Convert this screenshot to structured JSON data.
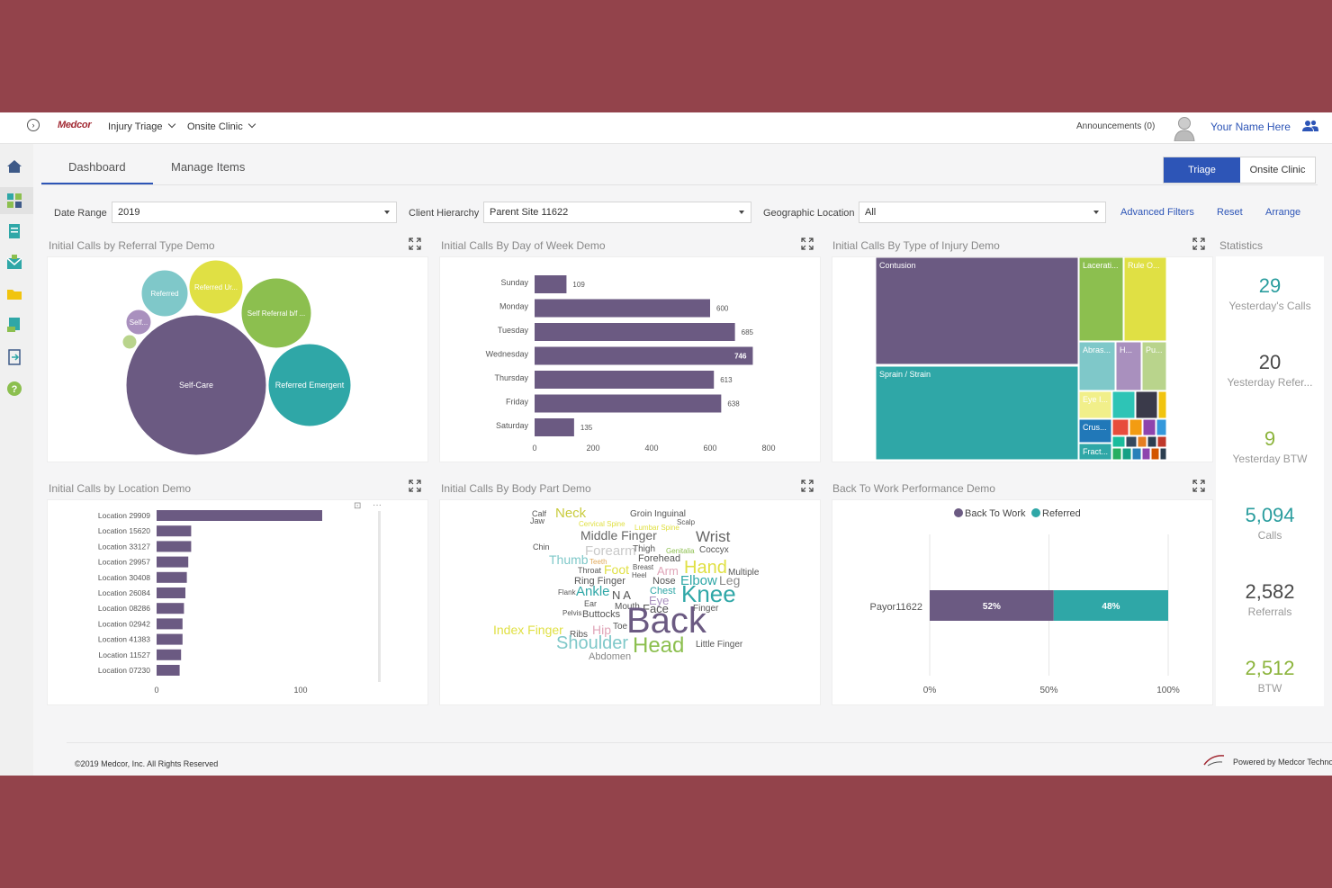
{
  "header": {
    "expand_icon": "chevron-right-icon",
    "logo": "Medcor",
    "nav": [
      "Injury Triage",
      "Onsite Clinic"
    ],
    "announcements": "Announcements (0)",
    "user_name": "Your Name Here",
    "user_icon": "users-icon"
  },
  "sidebar": {
    "icons": [
      "home-icon",
      "dashboard-icon",
      "document-icon",
      "mail-icon",
      "folder-icon",
      "report-icon",
      "export-icon",
      "help-icon"
    ]
  },
  "tabs": [
    "Dashboard",
    "Manage Items"
  ],
  "mode_buttons": [
    "Triage",
    "Onsite Clinic"
  ],
  "filters": {
    "date_range_label": "Date Range",
    "date_range_value": "2019",
    "client_hierarchy_label": "Client Hierarchy",
    "client_hierarchy_value": "Parent Site 11622",
    "geo_label": "Geographic Location",
    "geo_value": "All",
    "advanced": "Advanced Filters",
    "reset": "Reset",
    "arrange": "Arrange"
  },
  "panels": {
    "referral": "Initial Calls by Referral Type Demo",
    "day_of_week": "Initial Calls By Day of Week Demo",
    "injury_type": "Initial Calls By Type of Injury Demo",
    "statistics": "Statistics",
    "location": "Initial Calls by Location Demo",
    "body_part": "Initial Calls By Body Part Demo",
    "btw": "Back To Work Performance Demo"
  },
  "statistics": [
    {
      "value": "29",
      "label": "Yesterday's Calls",
      "color": "#2a9d9e"
    },
    {
      "value": "20",
      "label": "Yesterday Refer...",
      "color": "#4a4a4a"
    },
    {
      "value": "9",
      "label": "Yesterday BTW",
      "color": "#8cb43c"
    },
    {
      "value": "5,094",
      "label": "Calls",
      "color": "#2a9d9e"
    },
    {
      "value": "2,582",
      "label": "Referrals",
      "color": "#4a4a4a"
    },
    {
      "value": "2,512",
      "label": "BTW",
      "color": "#8cb43c"
    }
  ],
  "chart_data": [
    {
      "type": "bubble",
      "title": "Initial Calls by Referral Type Demo",
      "bubbles": [
        {
          "label": "Self-Care",
          "color": "#6b5a82"
        },
        {
          "label": "Referred Emergent",
          "color": "#2fa7a7"
        },
        {
          "label": "Self Referral b/f ...",
          "color": "#8cbf4f"
        },
        {
          "label": "Referred Ur...",
          "color": "#e0e044"
        },
        {
          "label": "Referred",
          "color": "#7fc8c9"
        },
        {
          "label": "Self...",
          "color": "#a990be"
        },
        {
          "label": "",
          "color": "#b9d48c"
        }
      ]
    },
    {
      "type": "bar",
      "title": "Initial Calls By Day of Week Demo",
      "categories": [
        "Sunday",
        "Monday",
        "Tuesday",
        "Wednesday",
        "Thursday",
        "Friday",
        "Saturday"
      ],
      "values": [
        109,
        600,
        685,
        746,
        613,
        638,
        135
      ],
      "xticks": [
        0,
        200,
        400,
        600,
        800
      ],
      "xlim": [
        0,
        800
      ],
      "color": "#6b5a82"
    },
    {
      "type": "treemap",
      "title": "Initial Calls By Type of Injury Demo",
      "labels": [
        "Contusion",
        "Sprain / Strain",
        "Lacerati...",
        "Rule O...",
        "Abras...",
        "H...",
        "Pu...",
        "Eye I...",
        "Crus...",
        "Fract..."
      ]
    },
    {
      "type": "bar",
      "title": "Initial Calls by Location Demo",
      "categories": [
        "Location 29909",
        "Location 15620",
        "Location 33127",
        "Location 29957",
        "Location 30408",
        "Location 26084",
        "Location 08286",
        "Location 02942",
        "Location 41383",
        "Location 11527",
        "Location 07230"
      ],
      "values": [
        115,
        24,
        24,
        22,
        21,
        20,
        19,
        18,
        18,
        17,
        16
      ],
      "xticks": [
        0,
        100
      ],
      "xlim": [
        0,
        150
      ],
      "color": "#6b5a82"
    },
    {
      "type": "wordcloud",
      "title": "Initial Calls By Body Part Demo",
      "words": [
        "Calf",
        "Jaw",
        "Neck",
        "Groin",
        "Inguinal",
        "Cervical Spine",
        "Lumbar Spine",
        "Scalp",
        "Middle Finger",
        "Wrist",
        "Chin",
        "Forearm",
        "Thigh",
        "Genitalia",
        "Coccyx",
        "Thumb",
        "Teeth",
        "Forehead",
        "Throat",
        "Foot",
        "Breast",
        "Heel",
        "Arm",
        "Hand",
        "Multiple",
        "Ring Finger",
        "Nose",
        "Elbow",
        "Leg",
        "Flank",
        "Ankle",
        "N A",
        "Chest",
        "Ear",
        "Mouth",
        "Eye",
        "Knee",
        "Pelvis",
        "Buttocks",
        "Face",
        "Finger",
        "Index Finger",
        "Hip",
        "Toe",
        "Back",
        "Ribs",
        "Shoulder",
        "Head",
        "Little Finger",
        "Abdomen"
      ]
    },
    {
      "type": "bar",
      "title": "Back To Work Performance Demo",
      "stacked": true,
      "categories": [
        "Payor11622"
      ],
      "series": [
        {
          "name": "Back To Work",
          "values": [
            52
          ],
          "label": "52%",
          "color": "#6b5a82"
        },
        {
          "name": "Referred",
          "values": [
            48
          ],
          "label": "48%",
          "color": "#2fa7a7"
        }
      ],
      "xticks": [
        "0%",
        "50%",
        "100%"
      ],
      "xlim": [
        0,
        100
      ]
    }
  ],
  "footer": {
    "copyright": "©2019 Medcor, Inc. All Rights Reserved",
    "powered": "Powered by Medcor Technology"
  }
}
